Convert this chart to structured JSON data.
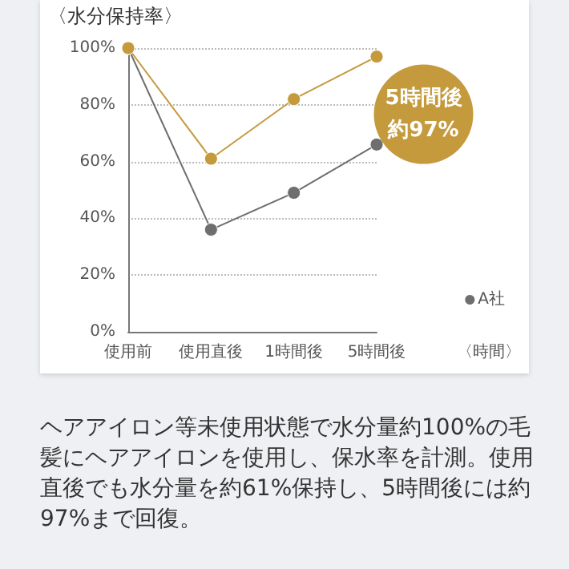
{
  "chart_data": {
    "type": "line",
    "ylabel": "〈水分保持率〉",
    "xlabel": "〈時間〉",
    "categories": [
      "使用前",
      "使用直後",
      "1時間後",
      "5時間後"
    ],
    "series": [
      {
        "color": "#c49a3c",
        "values": [
          100,
          61,
          82,
          97
        ]
      },
      {
        "name": "A社",
        "color": "#6e6e6e",
        "values": [
          100,
          36,
          49,
          66
        ]
      }
    ],
    "ylim": [
      0,
      100
    ],
    "yticks": [
      {
        "value": 0,
        "label": "0%"
      },
      {
        "value": 20,
        "label": "20%"
      },
      {
        "value": 40,
        "label": "40%"
      },
      {
        "value": 60,
        "label": "60%"
      },
      {
        "value": 80,
        "label": "80%"
      },
      {
        "value": 100,
        "label": "100%"
      }
    ],
    "grid": "y",
    "marker": "circle",
    "line_style": "solid",
    "legend": "bottom right",
    "annotations": [
      {
        "text": "5時間後",
        "x": "5時間後",
        "y": 97
      },
      {
        "text": "約97%",
        "x": "5時間後",
        "y": 97
      },
      "ヘアアイロン等未使用状態で水分量約100%の毛髪にヘアアイロンを使用し、保水率を計測。使用直後でも水分量を約61%保持し、5時間後には約97%まで回復。"
    ]
  }
}
